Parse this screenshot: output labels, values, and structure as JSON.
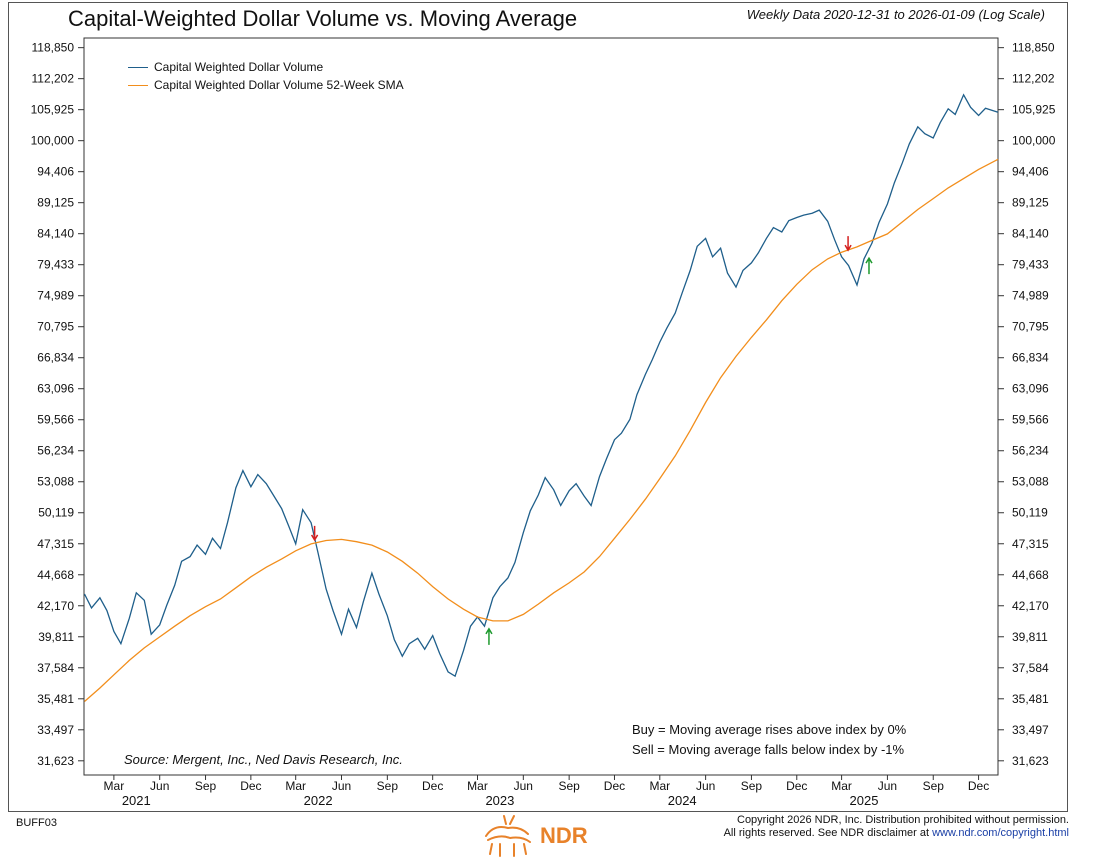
{
  "header": {
    "title": "Capital-Weighted Dollar Volume vs. Moving Average",
    "subtitle": "Weekly Data 2020-12-31 to 2026-01-09 (Log Scale)"
  },
  "legend": {
    "items": [
      {
        "label": "Capital Weighted Dollar Volume",
        "color": "#1f5f8b"
      },
      {
        "label": "Capital Weighted Dollar Volume 52-Week SMA",
        "color": "#f28e1c"
      }
    ]
  },
  "rules": {
    "buy": "Buy = Moving average rises above index by 0%",
    "sell": "Sell = Moving average falls below index by -1%"
  },
  "source": "Source:  Mergent, Inc., Ned Davis Research, Inc.",
  "footer": {
    "code": "BUFF03",
    "logo_text": "NDR",
    "copyright_line1": "Copyright 2026 NDR, Inc. Distribution prohibited without permission.",
    "copyright_line2_prefix": "All rights reserved. See NDR disclaimer at ",
    "copyright_link": "www.ndr.com/copyright.html"
  },
  "chart_data": {
    "type": "line",
    "scale": "log",
    "ylim": [
      30800,
      121000
    ],
    "y_ticks": [
      "31,623",
      "33,497",
      "35,481",
      "37,584",
      "39,811",
      "42,170",
      "44,668",
      "47,315",
      "50,119",
      "53,088",
      "56,234",
      "59,566",
      "63,096",
      "66,834",
      "70,795",
      "74,989",
      "79,433",
      "84,140",
      "89,125",
      "94,406",
      "100,000",
      "105,925",
      "112,202",
      "118,850"
    ],
    "xlim": [
      "2020-12-31",
      "2026-01-09"
    ],
    "x_ticks": [
      {
        "label": "Mar",
        "date": "2021-03-01"
      },
      {
        "label": "Jun",
        "date": "2021-06-01"
      },
      {
        "label": "Sep",
        "date": "2021-09-01"
      },
      {
        "label": "Dec",
        "date": "2021-12-01"
      },
      {
        "label": "Mar",
        "date": "2022-03-01"
      },
      {
        "label": "Jun",
        "date": "2022-06-01"
      },
      {
        "label": "Sep",
        "date": "2022-09-01"
      },
      {
        "label": "Dec",
        "date": "2022-12-01"
      },
      {
        "label": "Mar",
        "date": "2023-03-01"
      },
      {
        "label": "Jun",
        "date": "2023-06-01"
      },
      {
        "label": "Sep",
        "date": "2023-09-01"
      },
      {
        "label": "Dec",
        "date": "2023-12-01"
      },
      {
        "label": "Mar",
        "date": "2024-03-01"
      },
      {
        "label": "Jun",
        "date": "2024-06-01"
      },
      {
        "label": "Sep",
        "date": "2024-09-01"
      },
      {
        "label": "Dec",
        "date": "2024-12-01"
      },
      {
        "label": "Mar",
        "date": "2025-03-01"
      },
      {
        "label": "Jun",
        "date": "2025-06-01"
      },
      {
        "label": "Sep",
        "date": "2025-09-01"
      },
      {
        "label": "Dec",
        "date": "2025-12-01"
      }
    ],
    "year_labels": [
      {
        "label": "2021",
        "date": "2021-04-15"
      },
      {
        "label": "2022",
        "date": "2022-04-15"
      },
      {
        "label": "2023",
        "date": "2023-04-15"
      },
      {
        "label": "2024",
        "date": "2024-04-15"
      },
      {
        "label": "2025",
        "date": "2025-04-15"
      }
    ],
    "series": [
      {
        "name": "Capital Weighted Dollar Volume",
        "color": "#1f5f8b",
        "points": [
          [
            "2021-01-01",
            43100
          ],
          [
            "2021-01-15",
            42000
          ],
          [
            "2021-02-01",
            42800
          ],
          [
            "2021-02-15",
            41800
          ],
          [
            "2021-03-01",
            40200
          ],
          [
            "2021-03-15",
            39300
          ],
          [
            "2021-04-01",
            41200
          ],
          [
            "2021-04-15",
            43200
          ],
          [
            "2021-05-01",
            42600
          ],
          [
            "2021-05-15",
            40000
          ],
          [
            "2021-06-01",
            40700
          ],
          [
            "2021-06-15",
            42200
          ],
          [
            "2021-07-01",
            43800
          ],
          [
            "2021-07-15",
            45800
          ],
          [
            "2021-08-01",
            46200
          ],
          [
            "2021-08-15",
            47200
          ],
          [
            "2021-09-01",
            46400
          ],
          [
            "2021-09-15",
            47800
          ],
          [
            "2021-10-01",
            46900
          ],
          [
            "2021-10-15",
            49200
          ],
          [
            "2021-11-01",
            52500
          ],
          [
            "2021-11-15",
            54200
          ],
          [
            "2021-12-01",
            52600
          ],
          [
            "2021-12-15",
            53800
          ],
          [
            "2022-01-01",
            52900
          ],
          [
            "2022-01-15",
            51800
          ],
          [
            "2022-02-01",
            50500
          ],
          [
            "2022-02-15",
            48900
          ],
          [
            "2022-03-01",
            47300
          ],
          [
            "2022-03-15",
            50400
          ],
          [
            "2022-04-01",
            49200
          ],
          [
            "2022-04-15",
            46500
          ],
          [
            "2022-05-01",
            43500
          ],
          [
            "2022-05-15",
            41800
          ],
          [
            "2022-06-01",
            40000
          ],
          [
            "2022-06-15",
            41900
          ],
          [
            "2022-07-01",
            40500
          ],
          [
            "2022-07-15",
            42500
          ],
          [
            "2022-08-01",
            44800
          ],
          [
            "2022-08-15",
            43100
          ],
          [
            "2022-09-01",
            41400
          ],
          [
            "2022-09-15",
            39600
          ],
          [
            "2022-10-01",
            38400
          ],
          [
            "2022-10-15",
            39300
          ],
          [
            "2022-11-01",
            39700
          ],
          [
            "2022-11-15",
            38900
          ],
          [
            "2022-12-01",
            39900
          ],
          [
            "2022-12-15",
            38600
          ],
          [
            "2023-01-01",
            37300
          ],
          [
            "2023-01-15",
            37000
          ],
          [
            "2023-02-01",
            38800
          ],
          [
            "2023-02-15",
            40600
          ],
          [
            "2023-03-01",
            41300
          ],
          [
            "2023-03-15",
            40600
          ],
          [
            "2023-04-01",
            42800
          ],
          [
            "2023-04-15",
            43700
          ],
          [
            "2023-05-01",
            44400
          ],
          [
            "2023-05-15",
            45700
          ],
          [
            "2023-06-01",
            48300
          ],
          [
            "2023-06-15",
            50300
          ],
          [
            "2023-07-01",
            51800
          ],
          [
            "2023-07-15",
            53500
          ],
          [
            "2023-08-01",
            52300
          ],
          [
            "2023-08-15",
            50800
          ],
          [
            "2023-09-01",
            52200
          ],
          [
            "2023-09-15",
            52900
          ],
          [
            "2023-10-01",
            51700
          ],
          [
            "2023-10-15",
            50800
          ],
          [
            "2023-11-01",
            53600
          ],
          [
            "2023-11-15",
            55400
          ],
          [
            "2023-12-01",
            57400
          ],
          [
            "2023-12-15",
            58100
          ],
          [
            "2024-01-01",
            59600
          ],
          [
            "2024-01-15",
            62400
          ],
          [
            "2024-02-01",
            64800
          ],
          [
            "2024-02-15",
            66600
          ],
          [
            "2024-03-01",
            68800
          ],
          [
            "2024-03-15",
            70600
          ],
          [
            "2024-04-01",
            72600
          ],
          [
            "2024-04-15",
            75400
          ],
          [
            "2024-05-01",
            78600
          ],
          [
            "2024-05-15",
            82200
          ],
          [
            "2024-06-01",
            83400
          ],
          [
            "2024-06-15",
            80600
          ],
          [
            "2024-07-01",
            81900
          ],
          [
            "2024-07-15",
            78200
          ],
          [
            "2024-08-01",
            76200
          ],
          [
            "2024-08-15",
            78600
          ],
          [
            "2024-09-01",
            79700
          ],
          [
            "2024-09-15",
            81200
          ],
          [
            "2024-10-01",
            83400
          ],
          [
            "2024-10-15",
            85100
          ],
          [
            "2024-11-01",
            84400
          ],
          [
            "2024-11-15",
            86200
          ],
          [
            "2024-12-01",
            86700
          ],
          [
            "2024-12-15",
            87100
          ],
          [
            "2025-01-01",
            87400
          ],
          [
            "2025-01-15",
            87900
          ],
          [
            "2025-02-01",
            86100
          ],
          [
            "2025-02-15",
            83200
          ],
          [
            "2025-03-01",
            80600
          ],
          [
            "2025-03-15",
            79300
          ],
          [
            "2025-04-01",
            76500
          ],
          [
            "2025-04-15",
            80300
          ],
          [
            "2025-05-01",
            82700
          ],
          [
            "2025-05-15",
            85900
          ],
          [
            "2025-06-01",
            88900
          ],
          [
            "2025-06-15",
            92500
          ],
          [
            "2025-07-01",
            96000
          ],
          [
            "2025-07-15",
            99400
          ],
          [
            "2025-08-01",
            102600
          ],
          [
            "2025-08-15",
            101300
          ],
          [
            "2025-09-01",
            100500
          ],
          [
            "2025-09-15",
            103400
          ],
          [
            "2025-10-01",
            106100
          ],
          [
            "2025-10-15",
            105000
          ],
          [
            "2025-11-01",
            108900
          ],
          [
            "2025-11-15",
            106400
          ],
          [
            "2025-12-01",
            104800
          ],
          [
            "2025-12-15",
            106200
          ],
          [
            "2026-01-09",
            105400
          ]
        ]
      },
      {
        "name": "Capital Weighted Dollar Volume 52-Week SMA",
        "color": "#f28e1c",
        "points": [
          [
            "2021-01-01",
            35300
          ],
          [
            "2021-02-01",
            36200
          ],
          [
            "2021-03-01",
            37100
          ],
          [
            "2021-04-01",
            38100
          ],
          [
            "2021-05-01",
            39000
          ],
          [
            "2021-06-01",
            39800
          ],
          [
            "2021-07-01",
            40600
          ],
          [
            "2021-08-01",
            41400
          ],
          [
            "2021-09-01",
            42100
          ],
          [
            "2021-10-01",
            42700
          ],
          [
            "2021-11-01",
            43600
          ],
          [
            "2021-12-01",
            44500
          ],
          [
            "2022-01-01",
            45300
          ],
          [
            "2022-02-01",
            46000
          ],
          [
            "2022-03-01",
            46700
          ],
          [
            "2022-04-01",
            47300
          ],
          [
            "2022-05-01",
            47600
          ],
          [
            "2022-06-01",
            47700
          ],
          [
            "2022-07-01",
            47500
          ],
          [
            "2022-08-01",
            47200
          ],
          [
            "2022-09-01",
            46600
          ],
          [
            "2022-10-01",
            45800
          ],
          [
            "2022-11-01",
            44800
          ],
          [
            "2022-12-01",
            43700
          ],
          [
            "2023-01-01",
            42700
          ],
          [
            "2023-02-01",
            41900
          ],
          [
            "2023-03-01",
            41300
          ],
          [
            "2023-04-01",
            41000
          ],
          [
            "2023-05-01",
            41000
          ],
          [
            "2023-06-01",
            41500
          ],
          [
            "2023-07-01",
            42300
          ],
          [
            "2023-08-01",
            43200
          ],
          [
            "2023-09-01",
            44000
          ],
          [
            "2023-10-01",
            44900
          ],
          [
            "2023-11-01",
            46200
          ],
          [
            "2023-12-01",
            47800
          ],
          [
            "2024-01-01",
            49500
          ],
          [
            "2024-02-01",
            51400
          ],
          [
            "2024-03-01",
            53400
          ],
          [
            "2024-04-01",
            55700
          ],
          [
            "2024-05-01",
            58400
          ],
          [
            "2024-06-01",
            61500
          ],
          [
            "2024-07-01",
            64400
          ],
          [
            "2024-08-01",
            67000
          ],
          [
            "2024-09-01",
            69400
          ],
          [
            "2024-10-01",
            71700
          ],
          [
            "2024-11-01",
            74300
          ],
          [
            "2024-12-01",
            76600
          ],
          [
            "2025-01-01",
            78700
          ],
          [
            "2025-02-01",
            80300
          ],
          [
            "2025-03-01",
            81300
          ],
          [
            "2025-04-01",
            82100
          ],
          [
            "2025-05-01",
            83100
          ],
          [
            "2025-06-01",
            84100
          ],
          [
            "2025-07-01",
            86000
          ],
          [
            "2025-08-01",
            88000
          ],
          [
            "2025-09-01",
            89800
          ],
          [
            "2025-10-01",
            91600
          ],
          [
            "2025-11-01",
            93200
          ],
          [
            "2025-12-01",
            94800
          ],
          [
            "2026-01-09",
            96600
          ]
        ]
      }
    ],
    "signals": [
      {
        "type": "sell",
        "date": "2022-04-08",
        "value": 47300,
        "color": "#d42020"
      },
      {
        "type": "buy",
        "date": "2023-03-24",
        "value": 40700,
        "color": "#1e9a2e"
      },
      {
        "type": "sell",
        "date": "2025-03-14",
        "value": 81000,
        "color": "#d42020"
      },
      {
        "type": "buy",
        "date": "2025-04-25",
        "value": 81000,
        "color": "#1e9a2e"
      }
    ]
  }
}
